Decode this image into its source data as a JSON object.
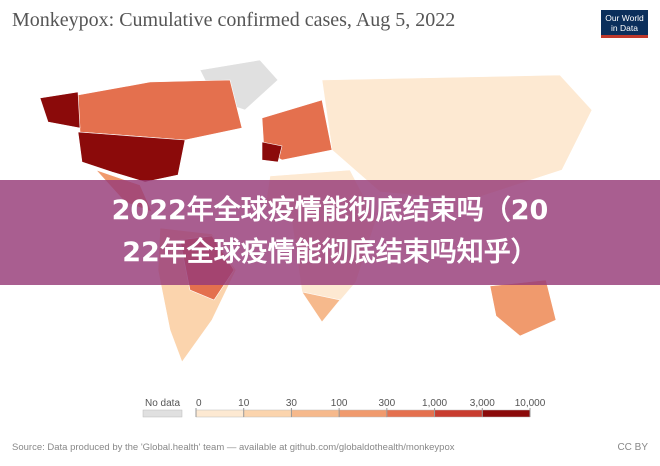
{
  "header": {
    "title": "Monkeypox: Cumulative confirmed cases, Aug 5, 2022",
    "logo": [
      "Our World",
      "in Data"
    ]
  },
  "banner": {
    "lines": [
      "2022年全球疫情能彻底结束吗（20",
      "22年全球疫情能彻底结束吗知乎）"
    ]
  },
  "legend": {
    "no_data": {
      "label": "No data",
      "color": "#e0e0e0"
    },
    "ticks": [
      "0",
      "10",
      "30",
      "100",
      "300",
      "1,000",
      "3,000",
      "10,000"
    ],
    "colors": [
      "#fde9d2",
      "#fbd4ad",
      "#f6b98c",
      "#f09a6d",
      "#e4704e",
      "#c83c2f",
      "#8b0a0a"
    ]
  },
  "footer": {
    "source": "Source: Data produced by the 'Global.health' team — available at github.com/globaldothealth/monkeypox",
    "license": "CC BY"
  }
}
